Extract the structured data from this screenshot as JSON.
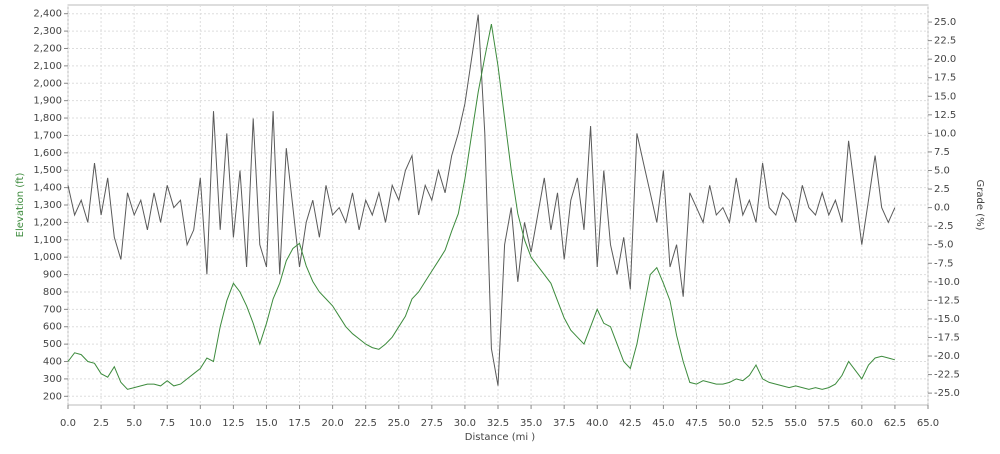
{
  "chart_data": {
    "type": "line",
    "x_label": "Distance (mi )",
    "y_label": "Elevation (ft)",
    "y2_label": "Grade (%)",
    "x": [
      0,
      0.5,
      1,
      1.5,
      2,
      2.5,
      3,
      3.5,
      4,
      4.5,
      5,
      5.5,
      6,
      6.5,
      7,
      7.5,
      8,
      8.5,
      9,
      9.5,
      10,
      10.5,
      11,
      11.5,
      12,
      12.5,
      13,
      13.5,
      14,
      14.5,
      15,
      15.5,
      16,
      16.5,
      17,
      17.5,
      18,
      18.5,
      19,
      19.5,
      20,
      20.5,
      21,
      21.5,
      22,
      22.5,
      23,
      23.5,
      24,
      24.5,
      25,
      25.5,
      26,
      26.5,
      27,
      27.5,
      28,
      28.5,
      29,
      29.5,
      30,
      30.5,
      31,
      31.5,
      32,
      32.5,
      33,
      33.5,
      34,
      34.5,
      35,
      35.5,
      36,
      36.5,
      37,
      37.5,
      38,
      38.5,
      39,
      39.5,
      40,
      40.5,
      41,
      41.5,
      42,
      42.5,
      43,
      43.5,
      44,
      44.5,
      45,
      45.5,
      46,
      46.5,
      47,
      47.5,
      48,
      48.5,
      49,
      49.5,
      50,
      50.5,
      51,
      51.5,
      52,
      52.5,
      53,
      53.5,
      54,
      54.5,
      55,
      55.5,
      56,
      56.5,
      57,
      57.5,
      58,
      58.5,
      59,
      59.5,
      60,
      60.5,
      61,
      61.5,
      62,
      62.5
    ],
    "series": [
      {
        "name": "Elevation",
        "color": "#3d8b3d",
        "axis": "y",
        "values": [
          400,
          450,
          440,
          400,
          390,
          330,
          310,
          370,
          280,
          240,
          250,
          260,
          270,
          270,
          260,
          290,
          260,
          270,
          300,
          330,
          360,
          420,
          400,
          600,
          750,
          850,
          800,
          720,
          620,
          500,
          620,
          760,
          850,
          980,
          1050,
          1080,
          950,
          860,
          800,
          760,
          720,
          660,
          600,
          560,
          530,
          500,
          480,
          470,
          500,
          540,
          600,
          660,
          760,
          800,
          860,
          920,
          980,
          1040,
          1150,
          1250,
          1450,
          1700,
          1950,
          2150,
          2340,
          2100,
          1800,
          1500,
          1250,
          1100,
          1000,
          950,
          900,
          850,
          750,
          650,
          580,
          540,
          500,
          600,
          700,
          620,
          600,
          500,
          400,
          360,
          500,
          700,
          900,
          940,
          850,
          750,
          550,
          400,
          280,
          270,
          290,
          280,
          270,
          270,
          280,
          300,
          290,
          320,
          380,
          300,
          280,
          270,
          260,
          250,
          260,
          250,
          240,
          250,
          240,
          250,
          270,
          320,
          400,
          350,
          300,
          380,
          420,
          430,
          420,
          410
        ]
      },
      {
        "name": "Grade",
        "color": "#5a5a5a",
        "axis": "y2",
        "values": [
          3,
          -1,
          1,
          -2,
          6,
          -1,
          4,
          -4,
          -7,
          2,
          -1,
          1,
          -3,
          2,
          -2,
          3,
          0,
          1,
          -5,
          -3,
          4,
          -9,
          13,
          -3,
          10,
          -4,
          5,
          -8,
          12,
          -5,
          -8,
          13,
          -9,
          8,
          0,
          -8,
          -2,
          1,
          -4,
          3,
          -1,
          0,
          -2,
          2,
          -3,
          1,
          -1,
          2,
          -2,
          3,
          1,
          5,
          7,
          -1,
          3,
          1,
          5,
          2,
          7,
          10,
          14,
          20,
          26,
          10,
          -19,
          -24,
          -5,
          0,
          -10,
          -2,
          -6,
          -1,
          4,
          -3,
          2,
          -7,
          1,
          4,
          -3,
          11,
          -8,
          5,
          -5,
          -9,
          -4,
          -11,
          10,
          6,
          2,
          -2,
          5,
          -8,
          -5,
          -12,
          2,
          0,
          -2,
          3,
          -1,
          0,
          -2,
          4,
          -1,
          1,
          -2,
          6,
          0,
          -1,
          2,
          1,
          -2,
          3,
          0,
          -1,
          2,
          -1,
          1,
          -2,
          9,
          2,
          -5,
          1,
          7,
          0,
          -2,
          0
        ]
      }
    ],
    "xlim": [
      0,
      65
    ],
    "ylim": [
      150,
      2450
    ],
    "y2lim": [
      -26.6,
      27.3
    ],
    "xticks": [
      {
        "value": 0,
        "label": "0.0"
      },
      {
        "value": 2.5,
        "label": "2.5"
      },
      {
        "value": 5,
        "label": "5.0"
      },
      {
        "value": 7.5,
        "label": "7.5"
      },
      {
        "value": 10,
        "label": "10.0"
      },
      {
        "value": 12.5,
        "label": "12.5"
      },
      {
        "value": 15,
        "label": "15.0"
      },
      {
        "value": 17.5,
        "label": "17.5"
      },
      {
        "value": 20,
        "label": "20.0"
      },
      {
        "value": 22.5,
        "label": "22.5"
      },
      {
        "value": 25,
        "label": "25.0"
      },
      {
        "value": 27.5,
        "label": "27.5"
      },
      {
        "value": 30,
        "label": "30.0"
      },
      {
        "value": 32.5,
        "label": "32.5"
      },
      {
        "value": 35,
        "label": "35.0"
      },
      {
        "value": 37.5,
        "label": "37.5"
      },
      {
        "value": 40,
        "label": "40.0"
      },
      {
        "value": 42.5,
        "label": "42.5"
      },
      {
        "value": 45,
        "label": "45.0"
      },
      {
        "value": 47.5,
        "label": "47.5"
      },
      {
        "value": 50,
        "label": "50.0"
      },
      {
        "value": 52.5,
        "label": "52.5"
      },
      {
        "value": 55,
        "label": "55.0"
      },
      {
        "value": 57.5,
        "label": "57.5"
      },
      {
        "value": 60,
        "label": "60.0"
      },
      {
        "value": 62.5,
        "label": "62.5"
      },
      {
        "value": 65,
        "label": "65.0"
      }
    ],
    "yticks": [
      200,
      300,
      400,
      500,
      600,
      700,
      800,
      900,
      {
        "value": 1000,
        "label": "1,000"
      },
      {
        "value": 1100,
        "label": "1,100"
      },
      {
        "value": 1200,
        "label": "1,200"
      },
      {
        "value": 1300,
        "label": "1,300"
      },
      {
        "value": 1400,
        "label": "1,400"
      },
      {
        "value": 1500,
        "label": "1,500"
      },
      {
        "value": 1600,
        "label": "1,600"
      },
      {
        "value": 1700,
        "label": "1,700"
      },
      {
        "value": 1800,
        "label": "1,800"
      },
      {
        "value": 1900,
        "label": "1,900"
      },
      {
        "value": 2000,
        "label": "2,000"
      },
      {
        "value": 2100,
        "label": "2,100"
      },
      {
        "value": 2200,
        "label": "2,200"
      },
      {
        "value": 2300,
        "label": "2,300"
      },
      {
        "value": 2400,
        "label": "2,400"
      }
    ],
    "y2ticks": [
      {
        "value": -25,
        "label": "-25.0"
      },
      {
        "value": -22.5,
        "label": "-22.5"
      },
      {
        "value": -20,
        "label": "-20.0"
      },
      {
        "value": -17.5,
        "label": "-17.5"
      },
      {
        "value": -15,
        "label": "-15.0"
      },
      {
        "value": -12.5,
        "label": "-12.5"
      },
      {
        "value": -10,
        "label": "-10.0"
      },
      {
        "value": -7.5,
        "label": "-7.5"
      },
      {
        "value": -5,
        "label": "-5.0"
      },
      {
        "value": -2.5,
        "label": "-2.5"
      },
      {
        "value": 0,
        "label": "0.0"
      },
      {
        "value": 2.5,
        "label": "2.5"
      },
      {
        "value": 5,
        "label": "5.0"
      },
      {
        "value": 7.5,
        "label": "7.5"
      },
      {
        "value": 10,
        "label": "10.0"
      },
      {
        "value": 12.5,
        "label": "12.5"
      },
      {
        "value": 15,
        "label": "15.0"
      },
      {
        "value": 17.5,
        "label": "17.5"
      },
      {
        "value": 20,
        "label": "20.0"
      },
      {
        "value": 22.5,
        "label": "22.5"
      },
      {
        "value": 25,
        "label": "25.0"
      }
    ],
    "grid": true
  }
}
